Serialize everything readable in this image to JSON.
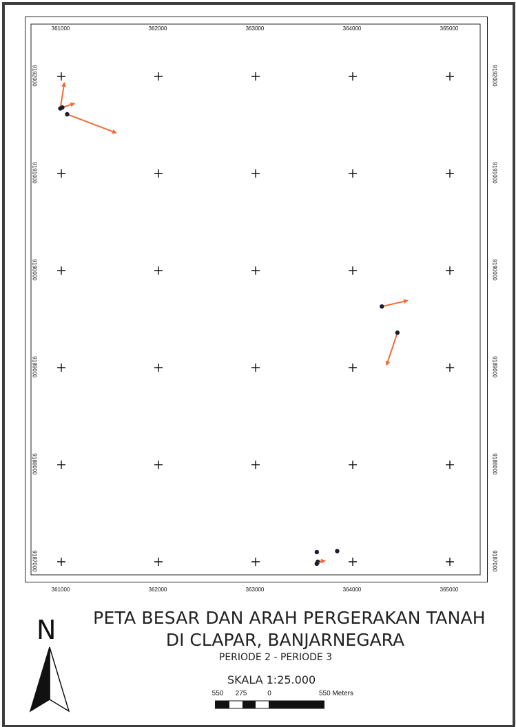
{
  "map": {
    "x_ticks": [
      "361000",
      "362000",
      "363000",
      "364000",
      "365000"
    ],
    "y_ticks": [
      "9192000",
      "9191000",
      "9190000",
      "9189000",
      "9188000",
      "9187000"
    ],
    "easting_range": [
      361000,
      365000
    ],
    "northing_range": [
      9187000,
      9192000
    ],
    "grid_marks": "plus-crosses at graticule intersections",
    "colors": {
      "point": "#1b1b2e",
      "arrow": "#f26a3a",
      "frame": "#3d3d3d"
    },
    "displacements": [
      {
        "from": [
          360990,
          9191670
        ],
        "to": [
          361030,
          9191930
        ]
      },
      {
        "from": [
          361010,
          9191680
        ],
        "to": [
          361130,
          9191720
        ]
      },
      {
        "from": [
          361060,
          9191610
        ],
        "to": [
          361560,
          9191420
        ]
      },
      {
        "from": [
          364300,
          9189630
        ],
        "to": [
          364560,
          9189690
        ]
      },
      {
        "from": [
          364460,
          9189360
        ],
        "to": [
          364350,
          9189030
        ]
      },
      {
        "from": [
          363640,
          9187000
        ],
        "to": [
          363710,
          9187010
        ]
      },
      {
        "from": [
          363630,
          9186980
        ],
        "to": [
          363660,
          9186990
        ]
      }
    ],
    "points_only": [
      {
        "at": [
          363840,
          9187110
        ]
      },
      {
        "at": [
          363630,
          9187100
        ]
      }
    ]
  },
  "title": {
    "line1": "PETA BESAR DAN ARAH PERGERAKAN TANAH",
    "line2": "DI CLAPAR, BANJARNEGARA",
    "line3": "PERIODE 2 - PERIODE 3"
  },
  "north_arrow": {
    "letter": "N",
    "icon": "north-arrow-icon"
  },
  "scale": {
    "text": "SKALA 1:25.000",
    "labels": [
      "550",
      "275",
      "0",
      "550 Meters"
    ]
  }
}
